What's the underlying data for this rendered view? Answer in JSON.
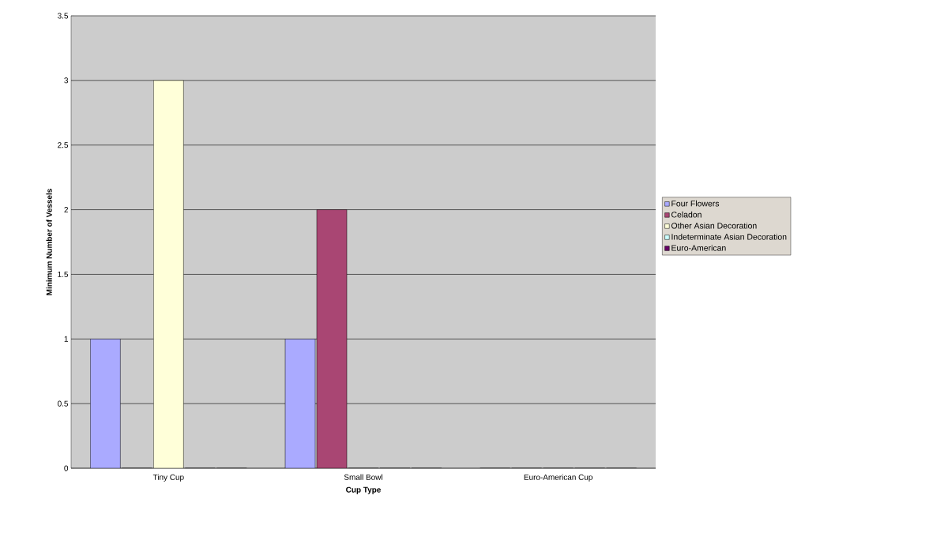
{
  "chart_data": {
    "type": "bar",
    "xlabel": "Cup Type",
    "ylabel": "Minimum Number of Vessels",
    "categories": [
      "Tiny Cup",
      "Small Bowl",
      "Euro-American Cup"
    ],
    "series": [
      {
        "name": "Four Flowers",
        "color": "#aaaaff",
        "values": [
          1,
          1,
          0
        ]
      },
      {
        "name": "Celadon",
        "color": "#a94673",
        "values": [
          0,
          2,
          0
        ]
      },
      {
        "name": "Other Asian Decoration",
        "color": "#ffffd9",
        "values": [
          3,
          0,
          0
        ]
      },
      {
        "name": "Indeterminate Asian Decoration",
        "color": "#ccffff",
        "values": [
          0,
          0,
          0
        ]
      },
      {
        "name": "Euro-American",
        "color": "#660066",
        "values": [
          0,
          0,
          0
        ]
      }
    ],
    "ylim": [
      0,
      3.5
    ],
    "yticks": [
      0,
      0.5,
      1,
      1.5,
      2,
      2.5,
      3,
      3.5
    ],
    "grid": "y",
    "legend": "right"
  }
}
